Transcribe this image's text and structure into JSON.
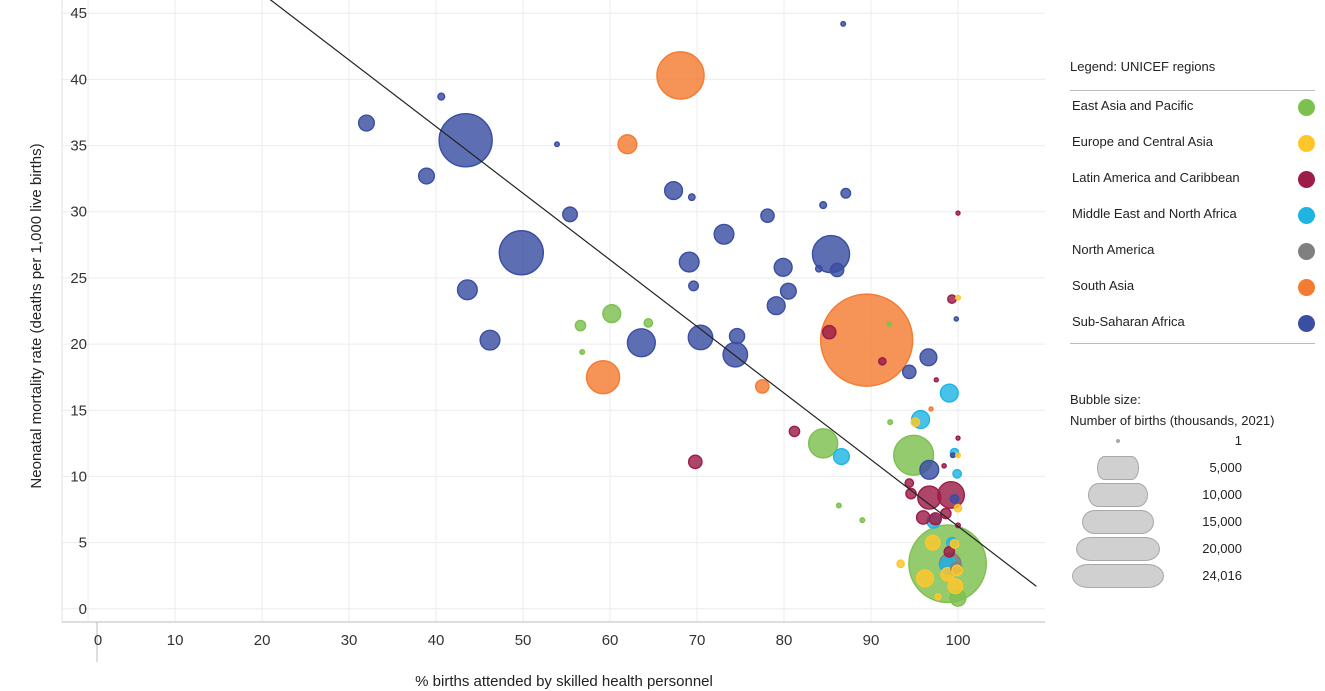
{
  "chart_data": {
    "type": "scatter",
    "title": "",
    "xlabel": "% births attended by skilled health personnel",
    "ylabel": "Neonatal mortality rate (deaths per 1,000 live births)",
    "xlim": [
      -3,
      110
    ],
    "ylim": [
      -1,
      46
    ],
    "x_ticks": [
      0,
      10,
      20,
      30,
      40,
      50,
      60,
      70,
      80,
      90,
      100
    ],
    "y_ticks": [
      0,
      5,
      10,
      15,
      20,
      25,
      30,
      35,
      40,
      45
    ],
    "grid": true,
    "trendline": [
      [
        20,
        46.5
      ],
      [
        109,
        1.7
      ]
    ],
    "legend_placement": "right",
    "legend_title": "Legend: UNICEF regions",
    "regions": [
      {
        "name": "East Asia and Pacific",
        "color": "#7cc04f"
      },
      {
        "name": "Europe and Central Asia",
        "color": "#ffc62c"
      },
      {
        "name": "Latin America and Caribbean",
        "color": "#9b1d48"
      },
      {
        "name": "Middle East and North Africa",
        "color": "#20b4e3"
      },
      {
        "name": "North America",
        "color": "#808080"
      },
      {
        "name": "South Asia",
        "color": "#f47b32"
      },
      {
        "name": "Sub-Saharan Africa",
        "color": "#3a4ea2"
      }
    ],
    "size_legend": {
      "title_line1": "Bubble size:",
      "title_line2": "Number of births (thousands, 2021)",
      "entries": [
        {
          "label": "1",
          "value": 1
        },
        {
          "label": "5,000",
          "value": 5000
        },
        {
          "label": "10,000",
          "value": 10000
        },
        {
          "label": "15,000",
          "value": 15000
        },
        {
          "label": "20,000",
          "value": 20000
        },
        {
          "label": "24,016",
          "value": 24016
        }
      ]
    },
    "points": [
      {
        "region": "Sub-Saharan Africa",
        "x": 43.4,
        "y": 35.4,
        "size": 8000
      },
      {
        "region": "Sub-Saharan Africa",
        "x": 49.8,
        "y": 26.9,
        "size": 5500
      },
      {
        "region": "Sub-Saharan Africa",
        "x": 85.4,
        "y": 26.8,
        "size": 3900
      },
      {
        "region": "Sub-Saharan Africa",
        "x": 32.0,
        "y": 36.7,
        "size": 700
      },
      {
        "region": "Sub-Saharan Africa",
        "x": 40.6,
        "y": 38.7,
        "size": 130
      },
      {
        "region": "Sub-Saharan Africa",
        "x": 38.9,
        "y": 32.7,
        "size": 700
      },
      {
        "region": "Sub-Saharan Africa",
        "x": 53.9,
        "y": 35.1,
        "size": 60
      },
      {
        "region": "Sub-Saharan Africa",
        "x": 55.4,
        "y": 29.8,
        "size": 600
      },
      {
        "region": "Sub-Saharan Africa",
        "x": 43.6,
        "y": 24.1,
        "size": 1100
      },
      {
        "region": "Sub-Saharan Africa",
        "x": 46.2,
        "y": 20.3,
        "size": 1100
      },
      {
        "region": "Sub-Saharan Africa",
        "x": 63.6,
        "y": 20.1,
        "size": 2200
      },
      {
        "region": "Sub-Saharan Africa",
        "x": 70.4,
        "y": 20.5,
        "size": 1700
      },
      {
        "region": "Sub-Saharan Africa",
        "x": 67.3,
        "y": 31.6,
        "size": 900
      },
      {
        "region": "Sub-Saharan Africa",
        "x": 69.4,
        "y": 31.1,
        "size": 120
      },
      {
        "region": "Sub-Saharan Africa",
        "x": 69.1,
        "y": 26.2,
        "size": 1100
      },
      {
        "region": "Sub-Saharan Africa",
        "x": 69.6,
        "y": 24.4,
        "size": 260
      },
      {
        "region": "Sub-Saharan Africa",
        "x": 73.1,
        "y": 28.3,
        "size": 1100
      },
      {
        "region": "Sub-Saharan Africa",
        "x": 74.4,
        "y": 19.2,
        "size": 1700
      },
      {
        "region": "Sub-Saharan Africa",
        "x": 74.6,
        "y": 20.6,
        "size": 650
      },
      {
        "region": "Sub-Saharan Africa",
        "x": 78.1,
        "y": 29.7,
        "size": 500
      },
      {
        "region": "Sub-Saharan Africa",
        "x": 79.9,
        "y": 25.8,
        "size": 900
      },
      {
        "region": "Sub-Saharan Africa",
        "x": 80.5,
        "y": 24.0,
        "size": 700
      },
      {
        "region": "Sub-Saharan Africa",
        "x": 79.1,
        "y": 22.9,
        "size": 900
      },
      {
        "region": "Sub-Saharan Africa",
        "x": 84.5,
        "y": 30.5,
        "size": 130
      },
      {
        "region": "Sub-Saharan Africa",
        "x": 84.0,
        "y": 25.7,
        "size": 120
      },
      {
        "region": "Sub-Saharan Africa",
        "x": 86.1,
        "y": 25.6,
        "size": 500
      },
      {
        "region": "Sub-Saharan Africa",
        "x": 86.8,
        "y": 44.2,
        "size": 60
      },
      {
        "region": "Sub-Saharan Africa",
        "x": 87.1,
        "y": 31.4,
        "size": 260
      },
      {
        "region": "Sub-Saharan Africa",
        "x": 94.4,
        "y": 17.9,
        "size": 500
      },
      {
        "region": "Sub-Saharan Africa",
        "x": 96.6,
        "y": 19.0,
        "size": 800
      },
      {
        "region": "Sub-Saharan Africa",
        "x": 96.7,
        "y": 10.5,
        "size": 1000
      },
      {
        "region": "Sub-Saharan Africa",
        "x": 99.8,
        "y": 21.9,
        "size": 50
      },
      {
        "region": "Sub-Saharan Africa",
        "x": 99.4,
        "y": 11.6,
        "size": 60
      },
      {
        "region": "Sub-Saharan Africa",
        "x": 99.6,
        "y": 8.3,
        "size": 200
      },
      {
        "region": "South Asia",
        "x": 89.5,
        "y": 20.3,
        "size": 24016
      },
      {
        "region": "South Asia",
        "x": 68.1,
        "y": 40.3,
        "size": 6300
      },
      {
        "region": "South Asia",
        "x": 62.0,
        "y": 35.1,
        "size": 1000
      },
      {
        "region": "South Asia",
        "x": 59.2,
        "y": 17.5,
        "size": 3100
      },
      {
        "region": "South Asia",
        "x": 77.5,
        "y": 16.8,
        "size": 500
      },
      {
        "region": "South Asia",
        "x": 96.9,
        "y": 15.1,
        "size": 20
      },
      {
        "region": "East Asia and Pacific",
        "x": 98.8,
        "y": 3.4,
        "size": 17000
      },
      {
        "region": "East Asia and Pacific",
        "x": 94.9,
        "y": 11.6,
        "size": 4500
      },
      {
        "region": "East Asia and Pacific",
        "x": 84.5,
        "y": 12.5,
        "size": 2400
      },
      {
        "region": "East Asia and Pacific",
        "x": 60.2,
        "y": 22.3,
        "size": 900
      },
      {
        "region": "East Asia and Pacific",
        "x": 56.6,
        "y": 21.4,
        "size": 300
      },
      {
        "region": "East Asia and Pacific",
        "x": 64.4,
        "y": 21.6,
        "size": 200
      },
      {
        "region": "East Asia and Pacific",
        "x": 56.8,
        "y": 19.4,
        "size": 60
      },
      {
        "region": "East Asia and Pacific",
        "x": 92.1,
        "y": 21.5,
        "size": 20
      },
      {
        "region": "East Asia and Pacific",
        "x": 92.2,
        "y": 14.1,
        "size": 60
      },
      {
        "region": "East Asia and Pacific",
        "x": 86.3,
        "y": 7.8,
        "size": 60
      },
      {
        "region": "East Asia and Pacific",
        "x": 89.0,
        "y": 6.7,
        "size": 60
      },
      {
        "region": "East Asia and Pacific",
        "x": 100.0,
        "y": 0.8,
        "size": 700
      },
      {
        "region": "Middle East and North Africa",
        "x": 95.7,
        "y": 14.3,
        "size": 900
      },
      {
        "region": "Middle East and North Africa",
        "x": 99.0,
        "y": 16.3,
        "size": 900
      },
      {
        "region": "Middle East and North Africa",
        "x": 86.6,
        "y": 11.5,
        "size": 700
      },
      {
        "region": "Middle East and North Africa",
        "x": 99.6,
        "y": 11.8,
        "size": 200
      },
      {
        "region": "Middle East and North Africa",
        "x": 99.9,
        "y": 10.2,
        "size": 200
      },
      {
        "region": "Middle East and North Africa",
        "x": 97.2,
        "y": 6.6,
        "size": 500
      },
      {
        "region": "Middle East and North Africa",
        "x": 98.9,
        "y": 3.3,
        "size": 800
      },
      {
        "region": "Middle East and North Africa",
        "x": 99.3,
        "y": 5.0,
        "size": 300
      },
      {
        "region": "Latin America and Caribbean",
        "x": 99.2,
        "y": 8.6,
        "size": 2000
      },
      {
        "region": "Latin America and Caribbean",
        "x": 96.7,
        "y": 8.4,
        "size": 1500
      },
      {
        "region": "Latin America and Caribbean",
        "x": 99.3,
        "y": 23.4,
        "size": 200
      },
      {
        "region": "Latin America and Caribbean",
        "x": 100.0,
        "y": 29.9,
        "size": 30
      },
      {
        "region": "Latin America and Caribbean",
        "x": 85.2,
        "y": 20.9,
        "size": 500
      },
      {
        "region": "Latin America and Caribbean",
        "x": 91.3,
        "y": 18.7,
        "size": 150
      },
      {
        "region": "Latin America and Caribbean",
        "x": 69.8,
        "y": 11.1,
        "size": 500
      },
      {
        "region": "Latin America and Caribbean",
        "x": 81.2,
        "y": 13.4,
        "size": 300
      },
      {
        "region": "Latin America and Caribbean",
        "x": 94.4,
        "y": 9.5,
        "size": 200
      },
      {
        "region": "Latin America and Caribbean",
        "x": 94.6,
        "y": 8.7,
        "size": 300
      },
      {
        "region": "Latin America and Caribbean",
        "x": 96.0,
        "y": 6.9,
        "size": 500
      },
      {
        "region": "Latin America and Caribbean",
        "x": 97.4,
        "y": 6.8,
        "size": 400
      },
      {
        "region": "Latin America and Caribbean",
        "x": 98.6,
        "y": 7.2,
        "size": 300
      },
      {
        "region": "Latin America and Caribbean",
        "x": 97.5,
        "y": 17.3,
        "size": 30
      },
      {
        "region": "Latin America and Caribbean",
        "x": 98.4,
        "y": 10.8,
        "size": 50
      },
      {
        "region": "Latin America and Caribbean",
        "x": 100.0,
        "y": 12.9,
        "size": 30
      },
      {
        "region": "Latin America and Caribbean",
        "x": 100.0,
        "y": 6.3,
        "size": 60
      },
      {
        "region": "Latin America and Caribbean",
        "x": 99.0,
        "y": 4.3,
        "size": 300
      },
      {
        "region": "Europe and Central Asia",
        "x": 100.0,
        "y": 23.5,
        "size": 60
      },
      {
        "region": "Europe and Central Asia",
        "x": 100.0,
        "y": 11.6,
        "size": 60
      },
      {
        "region": "Europe and Central Asia",
        "x": 100.0,
        "y": 7.6,
        "size": 150
      },
      {
        "region": "Europe and Central Asia",
        "x": 97.1,
        "y": 5.0,
        "size": 600
      },
      {
        "region": "Europe and Central Asia",
        "x": 96.2,
        "y": 2.3,
        "size": 800
      },
      {
        "region": "Europe and Central Asia",
        "x": 98.8,
        "y": 2.6,
        "size": 500
      },
      {
        "region": "Europe and Central Asia",
        "x": 99.7,
        "y": 1.7,
        "size": 600
      },
      {
        "region": "Europe and Central Asia",
        "x": 99.9,
        "y": 2.9,
        "size": 300
      },
      {
        "region": "Europe and Central Asia",
        "x": 93.4,
        "y": 3.4,
        "size": 150
      },
      {
        "region": "Europe and Central Asia",
        "x": 95.1,
        "y": 14.1,
        "size": 200
      },
      {
        "region": "Europe and Central Asia",
        "x": 97.7,
        "y": 0.9,
        "size": 100
      },
      {
        "region": "Europe and Central Asia",
        "x": 99.6,
        "y": 4.9,
        "size": 200
      },
      {
        "region": "North America",
        "x": 99.1,
        "y": 3.4,
        "size": 1300
      },
      {
        "region": "North America",
        "x": 99.8,
        "y": 3.1,
        "size": 350
      }
    ]
  }
}
